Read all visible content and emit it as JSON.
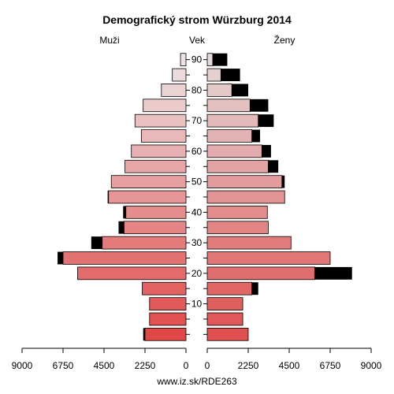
{
  "chart_data": {
    "type": "bar",
    "title": "Demografický strom Würzburg 2014",
    "left_label": "Muži",
    "center_label": "Vek",
    "right_label": "Ženy",
    "footer": "www.iz.sk/RDE263",
    "x_ticks_left": [
      "9000",
      "6750",
      "4500",
      "2250",
      "0"
    ],
    "x_ticks_right": [
      "0",
      "2250",
      "4500",
      "6750",
      "9000"
    ],
    "age_ticks": [
      "10",
      "20",
      "30",
      "40",
      "50",
      "60",
      "70",
      "80",
      "90"
    ],
    "xlim": [
      0,
      9000
    ],
    "age_groups": [
      "0-4",
      "5-9",
      "10-14",
      "15-19",
      "20-24",
      "25-29",
      "30-34",
      "35-39",
      "40-44",
      "45-49",
      "50-54",
      "55-59",
      "60-64",
      "65-69",
      "70-74",
      "75-79",
      "80-84",
      "85-89",
      "90+"
    ],
    "men_base": [
      2250,
      2000,
      2000,
      2400,
      5950,
      6750,
      4600,
      3400,
      3300,
      4250,
      4100,
      3350,
      3000,
      2450,
      2800,
      2350,
      1350,
      750,
      300
    ],
    "men_excess": [
      100,
      0,
      0,
      0,
      0,
      300,
      600,
      300,
      150,
      50,
      0,
      0,
      0,
      0,
      0,
      0,
      0,
      0,
      0
    ],
    "women_base": [
      2250,
      1950,
      1950,
      2450,
      5900,
      6750,
      4600,
      3350,
      3300,
      4250,
      4100,
      3350,
      3000,
      2450,
      2800,
      2350,
      1350,
      750,
      300
    ],
    "women_excess": [
      0,
      0,
      0,
      350,
      2050,
      0,
      0,
      0,
      0,
      0,
      150,
      550,
      500,
      450,
      850,
      1000,
      900,
      1050,
      800
    ],
    "colors": {
      "men_young": "#e04848",
      "men_old": "#ece4e4",
      "women_young": "#e05050",
      "women_old": "#e4d8d8",
      "excess": "#000000"
    }
  }
}
